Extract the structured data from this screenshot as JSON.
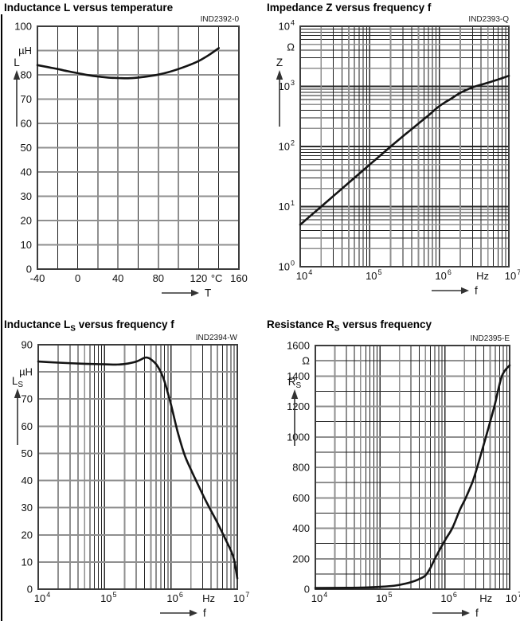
{
  "page": {
    "background": "#ffffff",
    "colors": {
      "grid_minor": "#1f1f1f",
      "grid_major": "#8f8f8f",
      "grid_decade": "#2a2a2a",
      "border": "#3c3c3c",
      "curve": "#141414",
      "text": "#111111",
      "arrow": "#333333"
    }
  },
  "chart_data": [
    {
      "type": "line",
      "code": "IND2392-0",
      "title_parts": [
        {
          "t": "Inductance L versus temperature"
        }
      ],
      "plot": {
        "l": 47,
        "t": 33,
        "r": 300,
        "b": 338
      },
      "x": {
        "scale": "linear",
        "min": -40,
        "max": 160,
        "minor_step": 20,
        "major_step": null,
        "arrow_label": "T",
        "ticks": [
          {
            "v": -40,
            "t": "-40"
          },
          {
            "v": 0,
            "t": "0"
          },
          {
            "v": 40,
            "t": "40"
          },
          {
            "v": 80,
            "t": "80"
          },
          {
            "v": 120,
            "t": "120"
          },
          {
            "v": 138,
            "t": "°C"
          },
          {
            "v": 160,
            "t": "160"
          }
        ]
      },
      "y": {
        "scale": "linear",
        "min": 0,
        "max": 100,
        "minor_step": 10,
        "major_step": 10,
        "symbol": "L",
        "symbol_sub": "",
        "ticks": [
          {
            "v": 100,
            "t": "100"
          },
          {
            "v": 90,
            "t": "µH"
          },
          {
            "v": 80,
            "t": "80"
          },
          {
            "v": 70,
            "t": "70"
          },
          {
            "v": 60,
            "t": "60"
          },
          {
            "v": 50,
            "t": "50"
          },
          {
            "v": 40,
            "t": "40"
          },
          {
            "v": 30,
            "t": "30"
          },
          {
            "v": 20,
            "t": "20"
          },
          {
            "v": 10,
            "t": "10"
          },
          {
            "v": 0,
            "t": "0"
          }
        ]
      },
      "points": [
        [
          -40,
          84
        ],
        [
          -30,
          83.2
        ],
        [
          -20,
          82.4
        ],
        [
          -10,
          81.5
        ],
        [
          0,
          80.7
        ],
        [
          10,
          79.9
        ],
        [
          20,
          79.3
        ],
        [
          30,
          78.9
        ],
        [
          40,
          78.7
        ],
        [
          50,
          78.6
        ],
        [
          60,
          78.9
        ],
        [
          70,
          79.4
        ],
        [
          80,
          80.1
        ],
        [
          90,
          81.1
        ],
        [
          100,
          82.4
        ],
        [
          110,
          83.9
        ],
        [
          120,
          85.7
        ],
        [
          130,
          88.1
        ],
        [
          140,
          91
        ]
      ]
    },
    {
      "type": "line",
      "code": "IND2393-Q",
      "title_parts": [
        {
          "t": "Impedance Z versus frequency f"
        }
      ],
      "plot": {
        "l": 50,
        "t": 33,
        "r": 312,
        "b": 335
      },
      "x": {
        "scale": "log",
        "min_exp": 4,
        "max_exp": 7,
        "arrow_label": "f",
        "ticks": [
          {
            "v": 10000,
            "t": "10^4"
          },
          {
            "v": 100000,
            "t": "10^5"
          },
          {
            "v": 1000000,
            "t": "10^6"
          },
          {
            "v": 4200000,
            "t": "Hz"
          },
          {
            "v": 10000000,
            "t": "10^7"
          }
        ]
      },
      "y": {
        "scale": "log",
        "min_exp": 0,
        "max_exp": 4,
        "symbol": "Z",
        "symbol_sub": "",
        "ticks": [
          {
            "v": 10000,
            "t": "10^4"
          },
          {
            "v": 4500,
            "t": "Ω"
          },
          {
            "v": 1000,
            "t": "10^3"
          },
          {
            "v": 100,
            "t": "10^2"
          },
          {
            "v": 10,
            "t": "10^1"
          },
          {
            "v": 1,
            "t": "10^0"
          }
        ]
      },
      "points": [
        [
          10000,
          5
        ],
        [
          20000,
          10
        ],
        [
          30000,
          15
        ],
        [
          50000,
          25
        ],
        [
          100000,
          50
        ],
        [
          200000,
          100
        ],
        [
          300000,
          148
        ],
        [
          500000,
          240
        ],
        [
          700000,
          330
        ],
        [
          1000000,
          470
        ],
        [
          1500000,
          630
        ],
        [
          2000000,
          780
        ],
        [
          3000000,
          960
        ],
        [
          5000000,
          1150
        ],
        [
          7000000,
          1300
        ],
        [
          10000000,
          1500
        ]
      ]
    },
    {
      "type": "line",
      "code": "IND2394-W",
      "title_parts": [
        {
          "t": "Inductance L"
        },
        {
          "t": "S",
          "sub": true
        },
        {
          "t": " versus frequency f"
        }
      ],
      "plot": {
        "l": 48,
        "t": 43,
        "r": 298,
        "b": 350
      },
      "x": {
        "scale": "log",
        "min_exp": 4,
        "max_exp": 7,
        "arrow_label": "f",
        "ticks": [
          {
            "v": 10000,
            "t": "10^4"
          },
          {
            "v": 100000,
            "t": "10^5"
          },
          {
            "v": 1000000,
            "t": "10^6"
          },
          {
            "v": 3700000,
            "t": "Hz"
          },
          {
            "v": 10000000,
            "t": "10^7"
          }
        ]
      },
      "y": {
        "scale": "linear",
        "min": 0,
        "max": 90,
        "minor_step": 10,
        "major_step": 10,
        "symbol": "L",
        "symbol_sub": "S",
        "ticks": [
          {
            "v": 90,
            "t": "90"
          },
          {
            "v": 80,
            "t": "µH"
          },
          {
            "v": 70,
            "t": "70"
          },
          {
            "v": 60,
            "t": "60"
          },
          {
            "v": 50,
            "t": "50"
          },
          {
            "v": 40,
            "t": "40"
          },
          {
            "v": 30,
            "t": "30"
          },
          {
            "v": 20,
            "t": "20"
          },
          {
            "v": 10,
            "t": "10"
          },
          {
            "v": 0,
            "t": "0"
          }
        ]
      },
      "points": [
        [
          10000,
          83.8
        ],
        [
          20000,
          83.4
        ],
        [
          50000,
          83
        ],
        [
          100000,
          82.8
        ],
        [
          150000,
          82.7
        ],
        [
          200000,
          82.9
        ],
        [
          300000,
          83.8
        ],
        [
          400000,
          85.2
        ],
        [
          450000,
          85.2
        ],
        [
          500000,
          84.6
        ],
        [
          600000,
          82.8
        ],
        [
          700000,
          80
        ],
        [
          800000,
          76.5
        ],
        [
          1000000,
          68
        ],
        [
          1260000,
          58
        ],
        [
          1600000,
          49.5
        ],
        [
          2000000,
          44
        ],
        [
          2500000,
          39
        ],
        [
          3200000,
          33.5
        ],
        [
          4000000,
          29
        ],
        [
          5000000,
          24.5
        ],
        [
          6300000,
          19.5
        ],
        [
          7900000,
          14.5
        ],
        [
          8900000,
          11
        ],
        [
          10000000,
          4
        ]
      ]
    },
    {
      "type": "line",
      "code": "IND2395-E",
      "title_parts": [
        {
          "t": "Resistance R"
        },
        {
          "t": "S",
          "sub": true
        },
        {
          "t": " versus frequency"
        }
      ],
      "plot": {
        "l": 69,
        "t": 44,
        "r": 313,
        "b": 350
      },
      "x": {
        "scale": "log",
        "min_exp": 4,
        "max_exp": 7,
        "arrow_label": "f",
        "ticks": [
          {
            "v": 10000,
            "t": "10^4"
          },
          {
            "v": 100000,
            "t": "10^5"
          },
          {
            "v": 1000000,
            "t": "10^6"
          },
          {
            "v": 4300000,
            "t": "Hz"
          },
          {
            "v": 10000000,
            "t": "10^7"
          }
        ]
      },
      "y": {
        "scale": "linear",
        "min": 0,
        "max": 1600,
        "minor_step": 100,
        "major_step": 200,
        "symbol": "R",
        "symbol_sub": "S",
        "ticks": [
          {
            "v": 1600,
            "t": "1600"
          },
          {
            "v": 1500,
            "t": "Ω"
          },
          {
            "v": 1400,
            "t": "1400"
          },
          {
            "v": 1200,
            "t": "1200"
          },
          {
            "v": 1000,
            "t": "1000"
          },
          {
            "v": 800,
            "t": "800"
          },
          {
            "v": 600,
            "t": "600"
          },
          {
            "v": 400,
            "t": "400"
          },
          {
            "v": 200,
            "t": "200"
          },
          {
            "v": 0,
            "t": "0"
          }
        ]
      },
      "points": [
        [
          10000,
          8
        ],
        [
          30000,
          9
        ],
        [
          60000,
          11
        ],
        [
          100000,
          15
        ],
        [
          150000,
          21
        ],
        [
          200000,
          28
        ],
        [
          300000,
          46
        ],
        [
          400000,
          66
        ],
        [
          500000,
          90
        ],
        [
          600000,
          140
        ],
        [
          700000,
          200
        ],
        [
          1000000,
          320
        ],
        [
          1300000,
          400
        ],
        [
          1700000,
          520
        ],
        [
          2100000,
          600
        ],
        [
          2700000,
          710
        ],
        [
          3200000,
          810
        ],
        [
          4300000,
          1000
        ],
        [
          5800000,
          1200
        ],
        [
          7600000,
          1400
        ],
        [
          10000000,
          1470
        ]
      ]
    }
  ]
}
